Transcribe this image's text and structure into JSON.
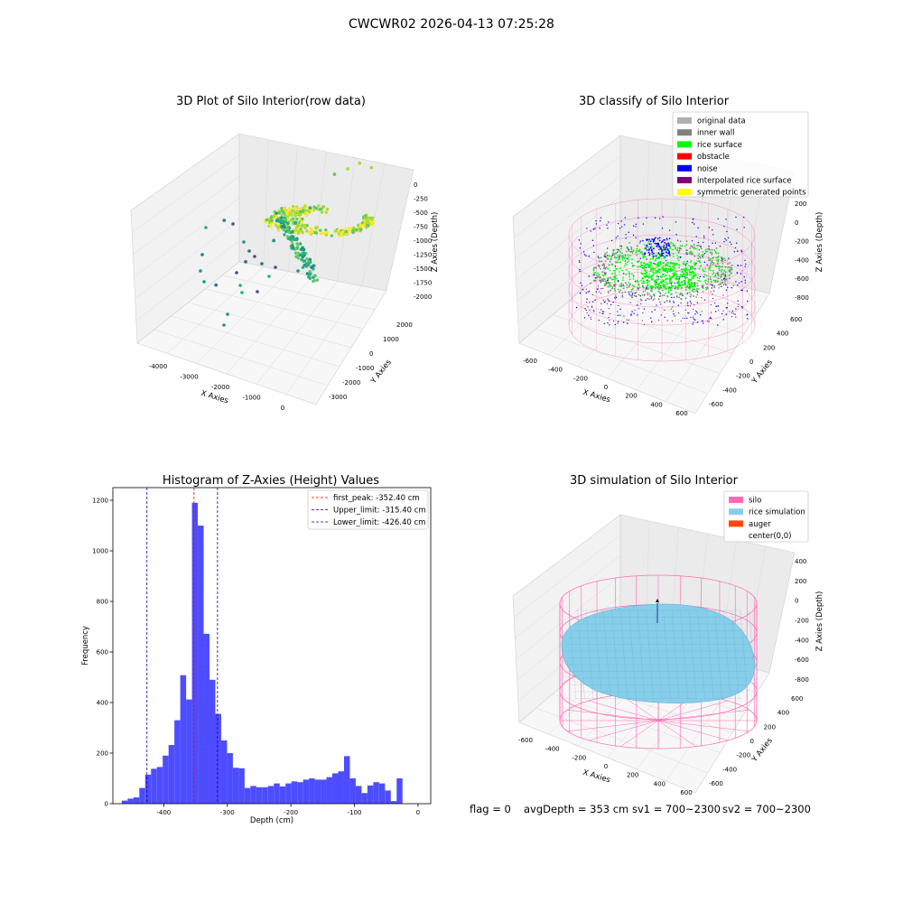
{
  "figure": {
    "suptitle": "CWCWR02 2026-04-13 07:25:28",
    "status_line": {
      "flag": "flag = 0",
      "avg_depth": "avgDepth = 353 cm",
      "sv1": "sv1 = 700~2300",
      "sv2": "sv2 = 700~2300"
    }
  },
  "chart_data": [
    {
      "type": "scatter",
      "projection": "3d",
      "title": "3D Plot of Silo Interior(row data)",
      "xlabel": "X Axies",
      "ylabel": "Y Axies",
      "zlabel": "Z Axies (Depth)",
      "x_ticks": [
        "-4000",
        "-3000",
        "-2000",
        "-1000",
        "0"
      ],
      "y_ticks": [
        "-3000",
        "-2000",
        "-1000",
        "0",
        "1000",
        "2000"
      ],
      "z_ticks": [
        "0",
        "-250",
        "-500",
        "-750",
        "-1000",
        "-1250",
        "-1500",
        "-1750",
        "-2000"
      ],
      "xlim": [
        -4500,
        500
      ],
      "ylim": [
        -3500,
        2500
      ],
      "zlim": [
        -2200,
        100
      ],
      "colormap": "viridis",
      "grid": true,
      "sample_points": [
        {
          "x": -600,
          "y": 1900,
          "z": -300
        },
        {
          "x": -300,
          "y": 2000,
          "z": -350
        },
        {
          "x": -900,
          "y": 1800,
          "z": -420
        },
        {
          "x": -1200,
          "y": 1600,
          "z": -500
        },
        {
          "x": -1600,
          "y": 900,
          "z": -900
        },
        {
          "x": -1900,
          "y": 600,
          "z": -1100
        },
        {
          "x": -2400,
          "y": 300,
          "z": -1400
        },
        {
          "x": -3000,
          "y": -200,
          "z": -1700
        },
        {
          "x": -3600,
          "y": -800,
          "z": -2000
        },
        {
          "x": -3800,
          "y": 200,
          "z": -1300
        }
      ]
    },
    {
      "type": "scatter",
      "projection": "3d",
      "title": "3D classify of Silo Interior",
      "xlabel": "X Axies",
      "ylabel": "Y Axies",
      "zlabel": "Z Axies (Depth)",
      "x_ticks": [
        "-600",
        "-400",
        "-200",
        "0",
        "200",
        "400",
        "600"
      ],
      "y_ticks": [
        "-600",
        "-400",
        "-200",
        "0",
        "200",
        "400",
        "600"
      ],
      "z_ticks": [
        "200",
        "0",
        "-200",
        "-400",
        "-600",
        "-800"
      ],
      "xlim": [
        -650,
        650
      ],
      "ylim": [
        -650,
        650
      ],
      "zlim": [
        -900,
        300
      ],
      "grid": true,
      "legend": {
        "placement": "top-right",
        "entries": [
          {
            "label": "original data",
            "color": "#b0b0b0"
          },
          {
            "label": "inner wall",
            "color": "#808080"
          },
          {
            "label": "rice surface",
            "color": "#00ff00"
          },
          {
            "label": "obstacle",
            "color": "#ff0000"
          },
          {
            "label": "noise",
            "color": "#0000ff"
          },
          {
            "label": "interpolated rice surface",
            "color": "#800080"
          },
          {
            "label": "symmetric generated points",
            "color": "#ffff00"
          }
        ]
      },
      "silo_wireframe_color": "#ff69b4"
    },
    {
      "type": "histogram",
      "title": "Histogram of Z-Axies (Height) Values",
      "xlabel": "Depth (cm)",
      "ylabel": "Frequency",
      "xlim": [
        -480,
        20
      ],
      "ylim": [
        0,
        1250
      ],
      "x_ticks": [
        -400,
        -300,
        -200,
        -100,
        0
      ],
      "y_ticks": [
        0,
        200,
        400,
        600,
        800,
        1000,
        1200
      ],
      "bar_color": "#4d4dff",
      "bin_width": 9.2,
      "bins_start": -466,
      "counts": [
        12,
        20,
        25,
        62,
        115,
        138,
        145,
        190,
        232,
        330,
        508,
        412,
        1190,
        1100,
        672,
        490,
        355,
        250,
        200,
        142,
        140,
        62,
        70,
        65,
        65,
        70,
        80,
        68,
        80,
        88,
        85,
        95,
        100,
        95,
        95,
        105,
        120,
        128,
        188,
        100,
        70,
        42,
        72,
        85,
        80,
        52,
        10,
        100
      ],
      "vlines": [
        {
          "label": "first_peak: -352.40 cm",
          "x": -352.4,
          "color": "#ff0000"
        },
        {
          "label": "Upper_limit: -315.40 cm",
          "x": -315.4,
          "color": "#0000aa"
        },
        {
          "label": "Lower_limit: -426.40 cm",
          "x": -426.4,
          "color": "#0000aa"
        }
      ],
      "legend": {
        "placement": "top-right"
      },
      "grid": false
    },
    {
      "type": "surface",
      "projection": "3d",
      "title": "3D simulation of Silo Interior",
      "xlabel": "X Axies",
      "ylabel": "Y Axies",
      "zlabel": "Z Axies (Depth)",
      "x_ticks": [
        "-600",
        "-400",
        "-200",
        "0",
        "200",
        "400",
        "600"
      ],
      "y_ticks": [
        "-600",
        "-400",
        "-200",
        "0",
        "200",
        "400",
        "600"
      ],
      "z_ticks": [
        "400",
        "200",
        "0",
        "-200",
        "-400",
        "-600",
        "-800"
      ],
      "xlim": [
        -650,
        650
      ],
      "ylim": [
        -650,
        650
      ],
      "zlim": [
        -900,
        450
      ],
      "grid": true,
      "legend": {
        "placement": "top-right",
        "entries": [
          {
            "label": "silo",
            "color": "#ff69b4"
          },
          {
            "label": "rice simulation",
            "color": "#87ceeb"
          },
          {
            "label": "auger",
            "color": "#ff4500"
          },
          {
            "label": "center(0,0)",
            "color": "none"
          }
        ]
      }
    }
  ]
}
